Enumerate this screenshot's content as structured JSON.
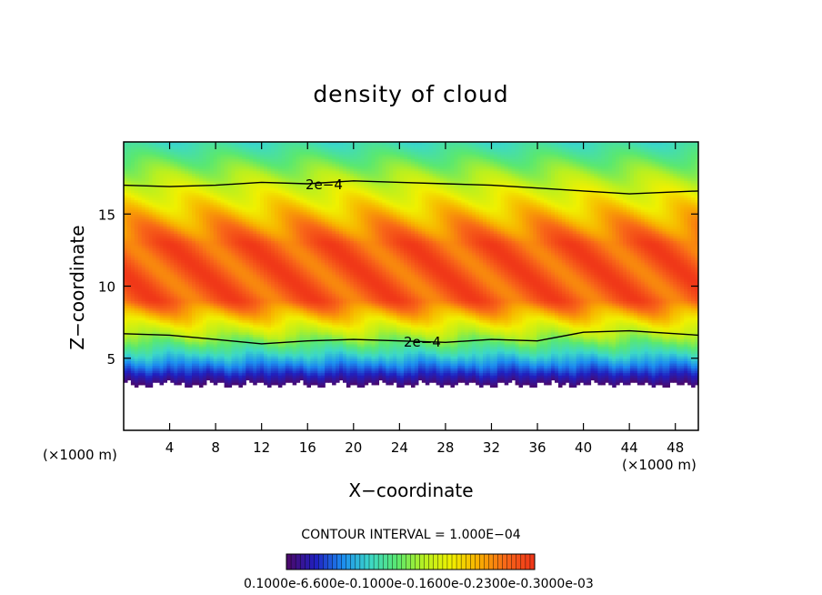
{
  "chart_data": {
    "type": "heatmap",
    "title": "density of cloud",
    "xlabel": "X−coordinate",
    "ylabel": "Z−coordinate",
    "x_unit_left": "(×1000 m)",
    "x_unit_right": "(×1000 m)",
    "xlim": [
      0,
      50
    ],
    "ylim": [
      0,
      20
    ],
    "x_ticks": [
      4,
      8,
      12,
      16,
      20,
      24,
      28,
      32,
      36,
      40,
      44,
      48
    ],
    "y_ticks": [
      5,
      10,
      15
    ],
    "contour_interval_text": "CONTOUR INTERVAL = 1.000E−04",
    "contour_label_upper": "2e−4",
    "contour_label_lower": "2e−4",
    "colorbar_labels_text": "0.1000e-6.600e-0.1000e-0.1600e-0.2300e-0.3000e-03",
    "colormap": [
      "#4a0a6e",
      "#2020c0",
      "#1c8cf0",
      "#3cd8c8",
      "#5ae870",
      "#b8f020",
      "#f0f000",
      "#f8b000",
      "#f86818",
      "#f03818"
    ],
    "field": {
      "cloud_base_z": 3.2,
      "cloud_top_z": 20.0,
      "contour_upper_z": [
        17.0,
        16.9,
        17.0,
        17.2,
        17.1,
        17.3,
        17.2,
        17.1,
        17.0,
        16.8,
        16.6,
        16.4,
        16.6
      ],
      "contour_lower_z": [
        6.7,
        6.6,
        6.3,
        6.0,
        6.2,
        6.3,
        6.2,
        6.1,
        6.3,
        6.2,
        6.8,
        6.9,
        6.6
      ],
      "contour_x": [
        0,
        4,
        8,
        12,
        16,
        20,
        24,
        28,
        32,
        36,
        40,
        44,
        50
      ]
    }
  }
}
